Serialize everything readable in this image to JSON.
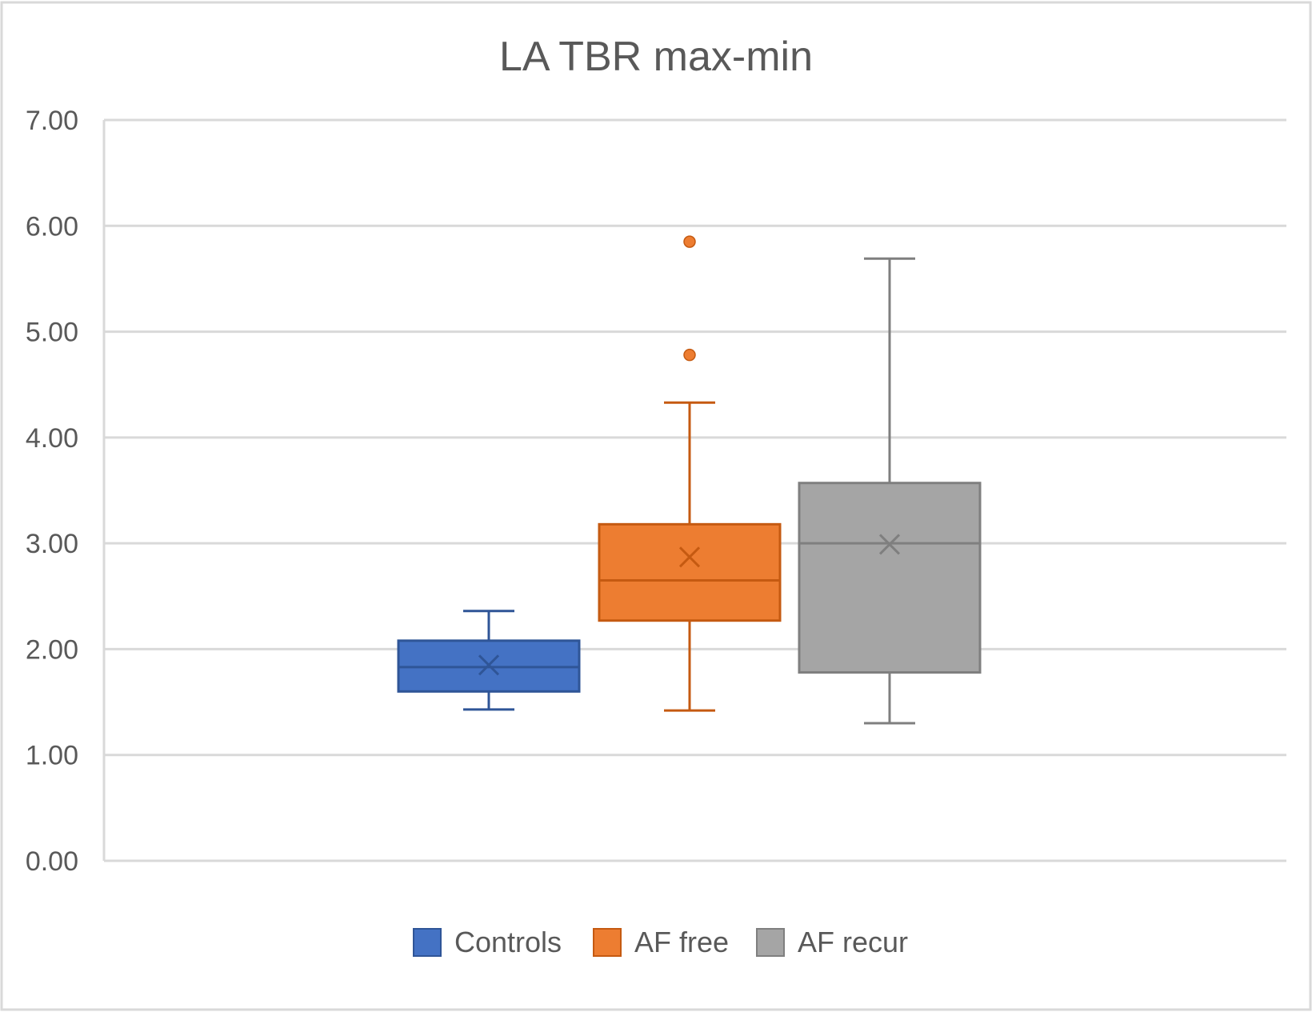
{
  "chart_data": {
    "type": "box",
    "title": "LA TBR max-min",
    "xlabel": "",
    "ylabel": "",
    "ylim": [
      0,
      7
    ],
    "yticks": [
      0,
      1,
      2,
      3,
      4,
      5,
      6,
      7
    ],
    "ytick_labels": [
      "0.00",
      "1.00",
      "2.00",
      "3.00",
      "4.00",
      "5.00",
      "6.00",
      "7.00"
    ],
    "grid": true,
    "legend_position": "bottom",
    "series": [
      {
        "name": "Controls",
        "color": "#4472C4",
        "edge_color": "#2F5597",
        "whisker_low": 1.43,
        "q1": 1.6,
        "median": 1.83,
        "q3": 2.08,
        "whisker_high": 2.36,
        "mean": 1.85,
        "outliers": []
      },
      {
        "name": "AF free",
        "color": "#ED7D31",
        "edge_color": "#C55A11",
        "whisker_low": 1.42,
        "q1": 2.27,
        "median": 2.65,
        "q3": 3.18,
        "whisker_high": 4.33,
        "mean": 2.87,
        "outliers": [
          4.78,
          5.85
        ]
      },
      {
        "name": "AF recur",
        "color": "#A5A5A5",
        "edge_color": "#7F7F7F",
        "whisker_low": 1.3,
        "q1": 1.78,
        "median": 3.0,
        "q3": 3.57,
        "whisker_high": 5.69,
        "mean": 2.99,
        "outliers": []
      }
    ]
  }
}
